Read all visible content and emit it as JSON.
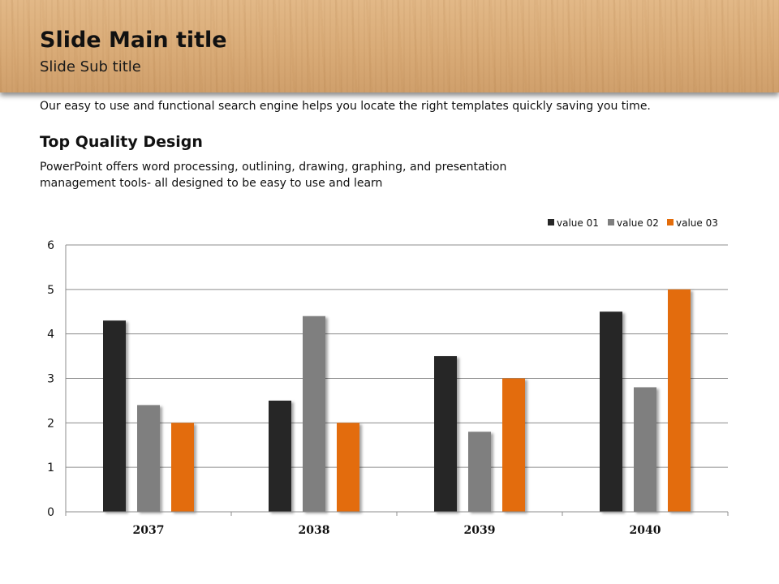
{
  "slide": {
    "main_title": "Slide Main title",
    "sub_title": "Slide Sub title",
    "intro": "Our easy to use and functional search engine helps you locate the right templates quickly saving you time.",
    "section_heading": "Top Quality Design",
    "body": "PowerPoint offers word processing, outlining, drawing, graphing, and presentation management tools- all designed to be easy to use and learn"
  },
  "colors": {
    "value01": "#262626",
    "value02": "#7f7f7f",
    "value03": "#e36c0a",
    "grid": "#8c8c8c"
  },
  "chart_data": {
    "type": "bar",
    "title": "",
    "xlabel": "",
    "ylabel": "",
    "categories": [
      "2037",
      "2038",
      "2039",
      "2040"
    ],
    "series": [
      {
        "name": "value 01",
        "values": [
          4.3,
          2.5,
          3.5,
          4.5
        ]
      },
      {
        "name": "value 02",
        "values": [
          2.4,
          4.4,
          1.8,
          2.8
        ]
      },
      {
        "name": "value 03",
        "values": [
          2.0,
          2.0,
          3.0,
          5.0
        ]
      }
    ],
    "ylim": [
      0,
      6
    ],
    "yticks": [
      0,
      1,
      2,
      3,
      4,
      5,
      6
    ],
    "grid": true,
    "legend_position": "top-right"
  }
}
